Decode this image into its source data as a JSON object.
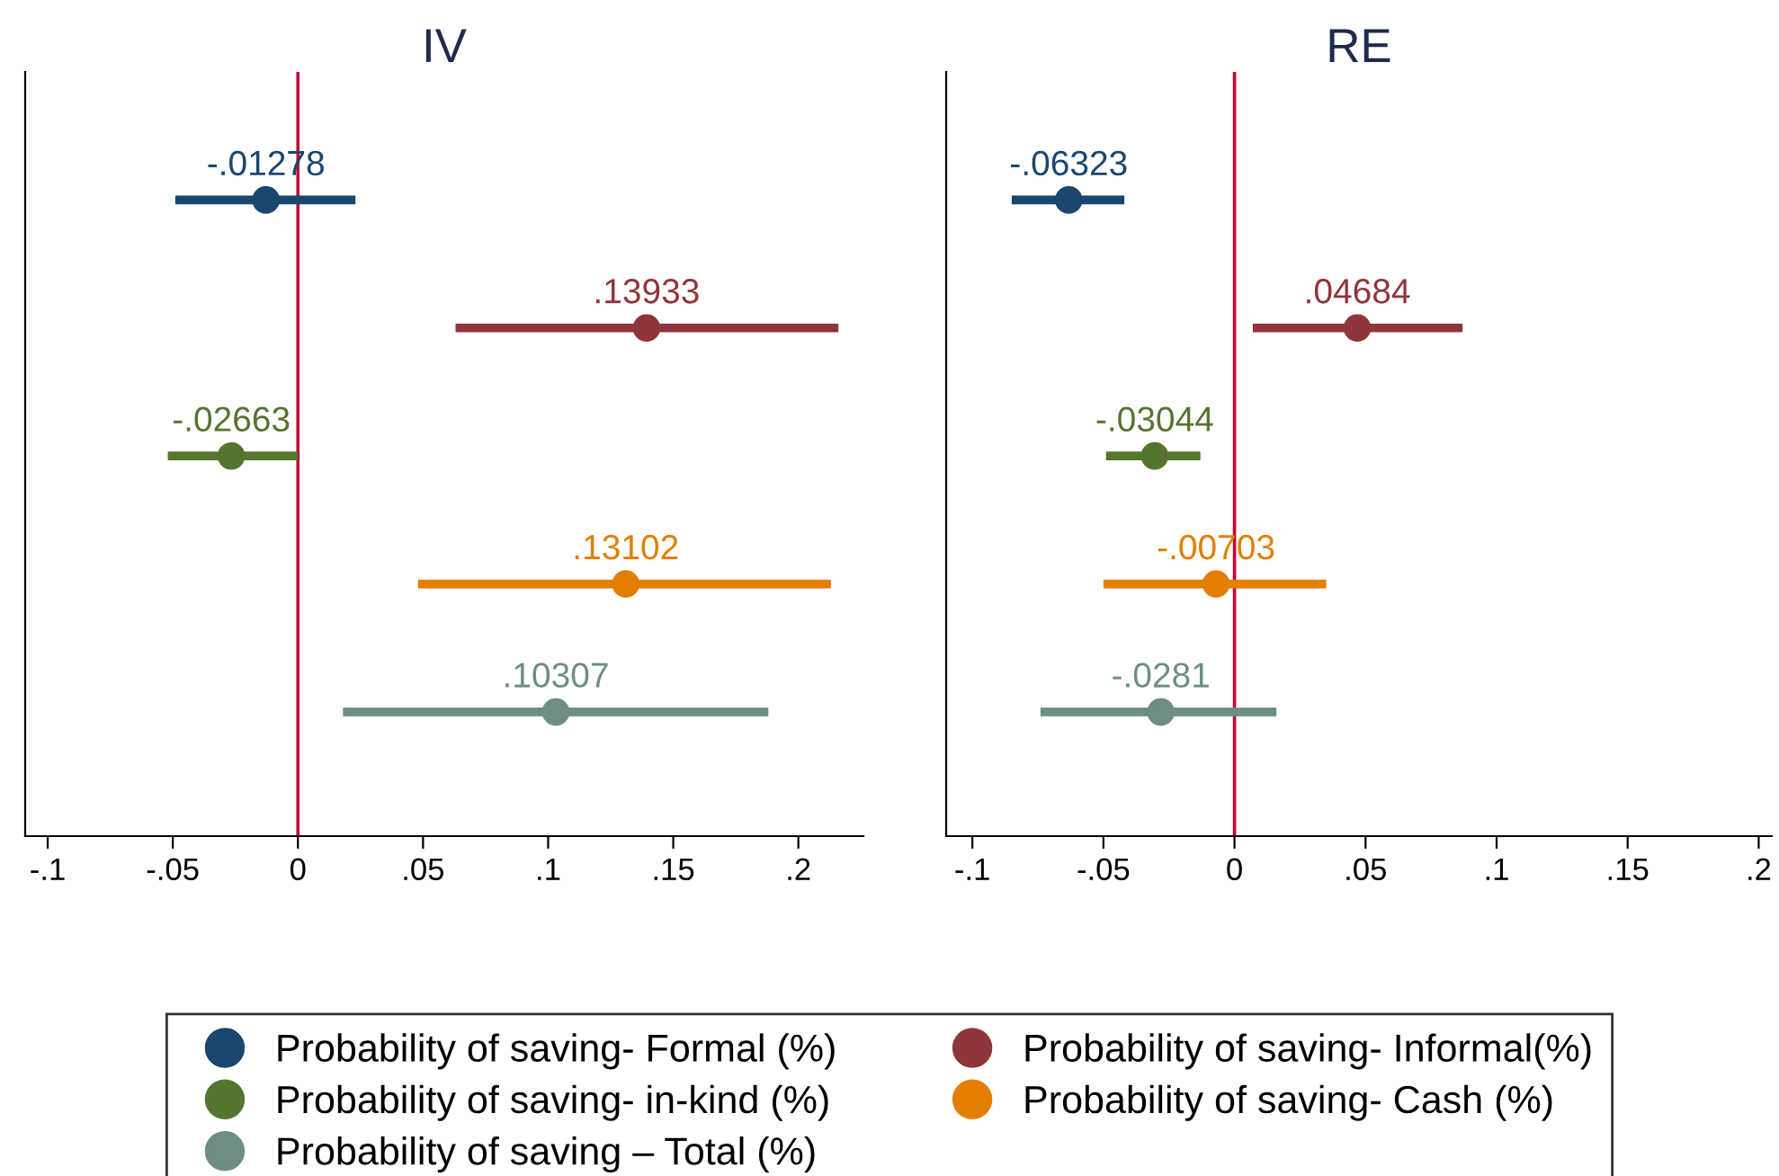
{
  "chart_data": [
    {
      "type": "scatter",
      "title": "IV",
      "orientation": "horizontal",
      "categories": [
        null,
        null,
        null,
        null,
        null
      ],
      "xlim": [
        -0.109,
        0.226
      ],
      "xticks": [
        {
          "value": -0.1,
          "label": "-.1"
        },
        {
          "value": -0.05,
          "label": "-.05"
        },
        0,
        {
          "value": 0.05,
          "label": ".05"
        },
        {
          "value": 0.1,
          "label": ".1"
        },
        {
          "value": 0.15,
          "label": ".15"
        },
        {
          "value": 0.2,
          "label": ".2"
        }
      ],
      "tick_labels": "x",
      "grid": false,
      "legend": "bottom",
      "marker": "circle",
      "ref_lines": [
        {
          "axis": "x",
          "value": 0,
          "color": "#c10534"
        }
      ],
      "series": [
        {
          "name": "Probability of saving- Formal (%)",
          "color": "#1a476f",
          "values": [
            -0.01278,
            null,
            null,
            null,
            null
          ],
          "errors": [
            [
              -0.049,
              0.023
            ],
            null,
            null,
            null,
            null
          ],
          "value_labels": [
            "-.01278",
            null,
            null,
            null,
            null
          ]
        },
        {
          "name": "Probability of saving- Informal(%)",
          "color": "#90353b",
          "values": [
            null,
            0.13933,
            null,
            null,
            null
          ],
          "errors": [
            null,
            [
              0.063,
              0.216
            ],
            null,
            null,
            null
          ],
          "value_labels": [
            null,
            ".13933",
            null,
            null,
            null
          ]
        },
        {
          "name": "Probability of saving- in-kind (%)",
          "color": "#55752f",
          "values": [
            null,
            null,
            -0.02663,
            null,
            null
          ],
          "errors": [
            null,
            null,
            [
              -0.052,
              0.0
            ],
            null,
            null
          ],
          "value_labels": [
            null,
            null,
            "-.02663",
            null,
            null
          ]
        },
        {
          "name": "Probability of saving- Cash (%)",
          "color": "#e37e00",
          "values": [
            null,
            null,
            null,
            0.13102,
            null
          ],
          "errors": [
            null,
            null,
            null,
            [
              0.048,
              0.213
            ],
            null
          ],
          "value_labels": [
            null,
            null,
            null,
            ".13102",
            null
          ]
        },
        {
          "name": "Probability of saving – Total (%)",
          "color": "#6e8e84",
          "values": [
            null,
            null,
            null,
            null,
            0.10307
          ],
          "errors": [
            null,
            null,
            null,
            null,
            [
              0.018,
              0.188
            ]
          ],
          "value_labels": [
            null,
            null,
            null,
            null,
            ".10307"
          ]
        }
      ]
    },
    {
      "type": "scatter",
      "title": "RE",
      "orientation": "horizontal",
      "categories": [
        null,
        null,
        null,
        null,
        null
      ],
      "xlim": [
        -0.11,
        0.205
      ],
      "xticks": [
        {
          "value": -0.1,
          "label": "-.1"
        },
        {
          "value": -0.05,
          "label": "-.05"
        },
        0,
        {
          "value": 0.05,
          "label": ".05"
        },
        {
          "value": 0.1,
          "label": ".1"
        },
        {
          "value": 0.15,
          "label": ".15"
        },
        {
          "value": 0.2,
          "label": ".2"
        }
      ],
      "tick_labels": "x",
      "grid": false,
      "marker": "circle",
      "ref_lines": [
        {
          "axis": "x",
          "value": 0,
          "color": "#c10534"
        }
      ],
      "series": [
        {
          "color": "#1a476f",
          "values": [
            -0.06323,
            null,
            null,
            null,
            null
          ],
          "errors": [
            [
              -0.085,
              -0.042
            ],
            null,
            null,
            null,
            null
          ],
          "value_labels": [
            "-.06323",
            null,
            null,
            null,
            null
          ]
        },
        {
          "color": "#90353b",
          "values": [
            null,
            0.04684,
            null,
            null,
            null
          ],
          "errors": [
            null,
            [
              0.007,
              0.087
            ],
            null,
            null,
            null
          ],
          "value_labels": [
            null,
            ".04684",
            null,
            null,
            null
          ]
        },
        {
          "color": "#55752f",
          "values": [
            null,
            null,
            -0.03044,
            null,
            null
          ],
          "errors": [
            null,
            null,
            [
              -0.049,
              -0.013
            ],
            null,
            null
          ],
          "value_labels": [
            null,
            null,
            "-.03044",
            null,
            null
          ]
        },
        {
          "color": "#e37e00",
          "values": [
            null,
            null,
            null,
            -0.00703,
            null
          ],
          "errors": [
            null,
            null,
            null,
            [
              -0.05,
              0.035
            ],
            null
          ],
          "value_labels": [
            null,
            null,
            null,
            "-.00703",
            null
          ]
        },
        {
          "color": "#6e8e84",
          "values": [
            null,
            null,
            null,
            null,
            -0.0281
          ],
          "errors": [
            null,
            null,
            null,
            null,
            [
              -0.074,
              0.016
            ]
          ],
          "value_labels": [
            null,
            null,
            null,
            null,
            "-.0281"
          ]
        }
      ]
    }
  ]
}
